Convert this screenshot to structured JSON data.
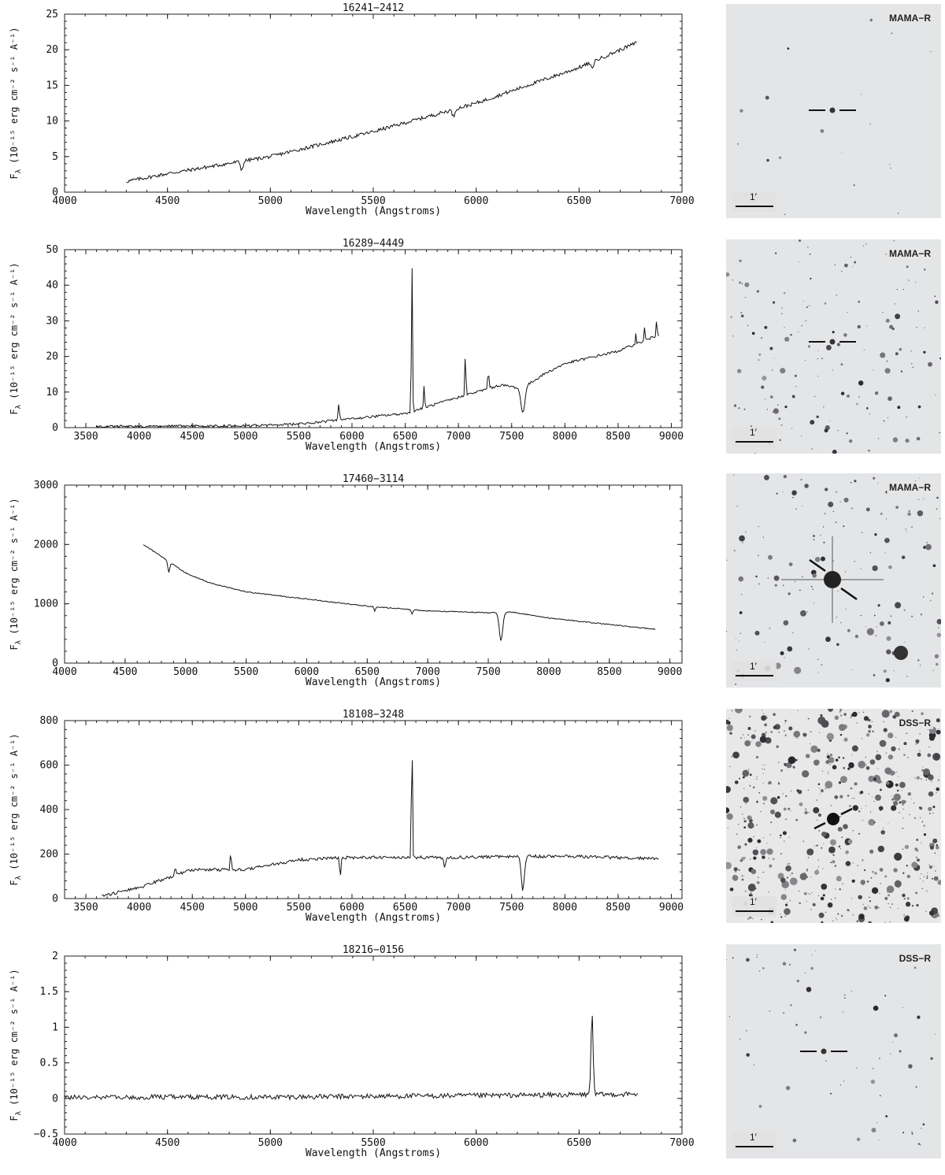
{
  "rows": [
    {
      "chart": {
        "type": "line",
        "title": "16241−2412",
        "xlabel": "Wavelength (Angstroms)",
        "ylabel_prefix": "F",
        "ylabel_sub": "λ",
        "ylabel_body": " (10⁻¹⁵ erg cm⁻² s⁻¹ A⁻¹)",
        "xlim": [
          4000,
          7000
        ],
        "ylim": [
          0,
          25
        ],
        "xticks": [
          4000,
          4500,
          5000,
          5500,
          6000,
          6500,
          7000
        ],
        "yticks": [
          0,
          5,
          10,
          15,
          20,
          25
        ],
        "ytick_labels": [
          "0",
          "5",
          "10",
          "15",
          "20",
          "25"
        ],
        "x_range": [
          4300,
          6780
        ],
        "noise": 0.25,
        "continuum": [
          [
            4300,
            1.5
          ],
          [
            4500,
            2.6
          ],
          [
            5000,
            5.0
          ],
          [
            5500,
            8.5
          ],
          [
            6000,
            12.5
          ],
          [
            6500,
            17.5
          ],
          [
            6780,
            21
          ]
        ],
        "features": [
          [
            4861,
            -1.2,
            6
          ],
          [
            5890,
            -1.0,
            6
          ],
          [
            6563,
            -1.0,
            6
          ]
        ]
      },
      "image": {
        "label": "MAMA−R",
        "scale_label": "1′",
        "style": "sparse"
      }
    },
    {
      "chart": {
        "type": "line",
        "title": "16289−4449",
        "xlabel": "Wavelength (Angstroms)",
        "ylabel_prefix": "F",
        "ylabel_sub": "λ",
        "ylabel_body": " (10⁻¹⁵ erg cm⁻² s⁻¹ A⁻¹)",
        "xlim": [
          3300,
          9100
        ],
        "ylim": [
          0,
          50
        ],
        "xticks": [
          3500,
          4000,
          4500,
          5000,
          5500,
          6000,
          6500,
          7000,
          7500,
          8000,
          8500,
          9000
        ],
        "yticks": [
          0,
          10,
          20,
          30,
          40,
          50
        ],
        "ytick_labels": [
          "0",
          "10",
          "20",
          "30",
          "40",
          "50"
        ],
        "x_range": [
          3600,
          8880
        ],
        "noise": 0.35,
        "continuum": [
          [
            3600,
            0.3
          ],
          [
            5000,
            0.5
          ],
          [
            5500,
            1.0
          ],
          [
            6000,
            2.5
          ],
          [
            6500,
            4.0
          ],
          [
            7000,
            8.5
          ],
          [
            7400,
            12
          ],
          [
            7600,
            11
          ],
          [
            7800,
            15
          ],
          [
            8000,
            18
          ],
          [
            8500,
            21.5
          ],
          [
            8880,
            26
          ]
        ],
        "features": [
          [
            5876,
            4.5,
            6
          ],
          [
            6563,
            43,
            5
          ],
          [
            6678,
            6,
            5
          ],
          [
            7065,
            12,
            5
          ],
          [
            7281,
            6,
            5
          ],
          [
            7605,
            -7,
            18
          ],
          [
            8665,
            3,
            4
          ],
          [
            8750,
            4,
            4
          ],
          [
            8863,
            6,
            4
          ]
        ]
      },
      "image": {
        "label": "MAMA−R",
        "scale_label": "1′",
        "style": "medium"
      }
    },
    {
      "chart": {
        "type": "line",
        "title": "17460−3114",
        "xlabel": "Wavelength (Angstroms)",
        "ylabel_prefix": "F",
        "ylabel_sub": "λ",
        "ylabel_body": " (10⁻¹⁵ erg cm⁻² s⁻¹ A⁻¹)",
        "xlim": [
          4000,
          9100
        ],
        "ylim": [
          0,
          3000
        ],
        "xticks": [
          4000,
          4500,
          5000,
          5500,
          6000,
          6500,
          7000,
          7500,
          8000,
          8500,
          9000
        ],
        "yticks": [
          0,
          1000,
          2000,
          3000
        ],
        "ytick_labels": [
          "0",
          "1000",
          "2000",
          "3000"
        ],
        "x_range": [
          4650,
          8880
        ],
        "noise": 8,
        "continuum": [
          [
            4650,
            2000
          ],
          [
            4800,
            1800
          ],
          [
            5000,
            1520
          ],
          [
            5200,
            1350
          ],
          [
            5500,
            1200
          ],
          [
            6000,
            1080
          ],
          [
            6500,
            960
          ],
          [
            7000,
            880
          ],
          [
            7500,
            850
          ],
          [
            7700,
            860
          ],
          [
            8000,
            760
          ],
          [
            8500,
            650
          ],
          [
            8880,
            570
          ]
        ],
        "features": [
          [
            4861,
            -180,
            8
          ],
          [
            6563,
            -80,
            6
          ],
          [
            6870,
            -70,
            6
          ],
          [
            7605,
            -480,
            14
          ]
        ]
      },
      "image": {
        "label": "MAMA−R",
        "scale_label": "1′",
        "style": "bright"
      }
    },
    {
      "chart": {
        "type": "line",
        "title": "18108−3248",
        "xlabel": "Wavelength (Angstroms)",
        "ylabel_prefix": "F",
        "ylabel_sub": "λ",
        "ylabel_body": " (10⁻¹⁵ erg cm⁻² s⁻¹ A⁻¹)",
        "xlim": [
          3300,
          9100
        ],
        "ylim": [
          0,
          800
        ],
        "xticks": [
          3500,
          4000,
          4500,
          5000,
          5500,
          6000,
          6500,
          7000,
          7500,
          8000,
          8500,
          9000
        ],
        "yticks": [
          0,
          200,
          400,
          600,
          800
        ],
        "ytick_labels": [
          "0",
          "200",
          "400",
          "600",
          "800"
        ],
        "x_range": [
          3650,
          8880
        ],
        "noise": 7,
        "continuum": [
          [
            3650,
            10
          ],
          [
            4000,
            50
          ],
          [
            4500,
            130
          ],
          [
            5000,
            130
          ],
          [
            5500,
            175
          ],
          [
            6000,
            185
          ],
          [
            6500,
            185
          ],
          [
            7000,
            185
          ],
          [
            7500,
            190
          ],
          [
            8000,
            190
          ],
          [
            8880,
            180
          ]
        ],
        "features": [
          [
            4340,
            45,
            5
          ],
          [
            4861,
            90,
            5
          ],
          [
            5890,
            -80,
            6
          ],
          [
            6563,
            570,
            5
          ],
          [
            6870,
            -50,
            8
          ],
          [
            7605,
            -150,
            14
          ]
        ]
      },
      "image": {
        "label": "DSS−R",
        "scale_label": "1′",
        "style": "dense"
      }
    },
    {
      "chart": {
        "type": "line",
        "title": "18216−0156",
        "xlabel": "Wavelength (Angstroms)",
        "ylabel_prefix": "F",
        "ylabel_sub": "λ",
        "ylabel_body": " (10⁻¹⁵ erg cm⁻² s⁻¹ A⁻¹)",
        "xlim": [
          4000,
          7000
        ],
        "ylim": [
          -0.5,
          2
        ],
        "xticks": [
          4000,
          4500,
          5000,
          5500,
          6000,
          6500,
          7000
        ],
        "yticks": [
          -0.5,
          0,
          0.5,
          1,
          1.5,
          2
        ],
        "ytick_labels": [
          "−0.5",
          "0",
          "0.5",
          "1",
          "1.5",
          "2"
        ],
        "x_range": [
          4000,
          6790
        ],
        "noise": 0.035,
        "continuum": [
          [
            4000,
            0.02
          ],
          [
            5000,
            0.02
          ],
          [
            6000,
            0.04
          ],
          [
            6790,
            0.06
          ]
        ],
        "features": [
          [
            6563,
            1.18,
            5
          ]
        ]
      },
      "image": {
        "label": "DSS−R",
        "scale_label": "1′",
        "style": "sparse2"
      }
    }
  ]
}
